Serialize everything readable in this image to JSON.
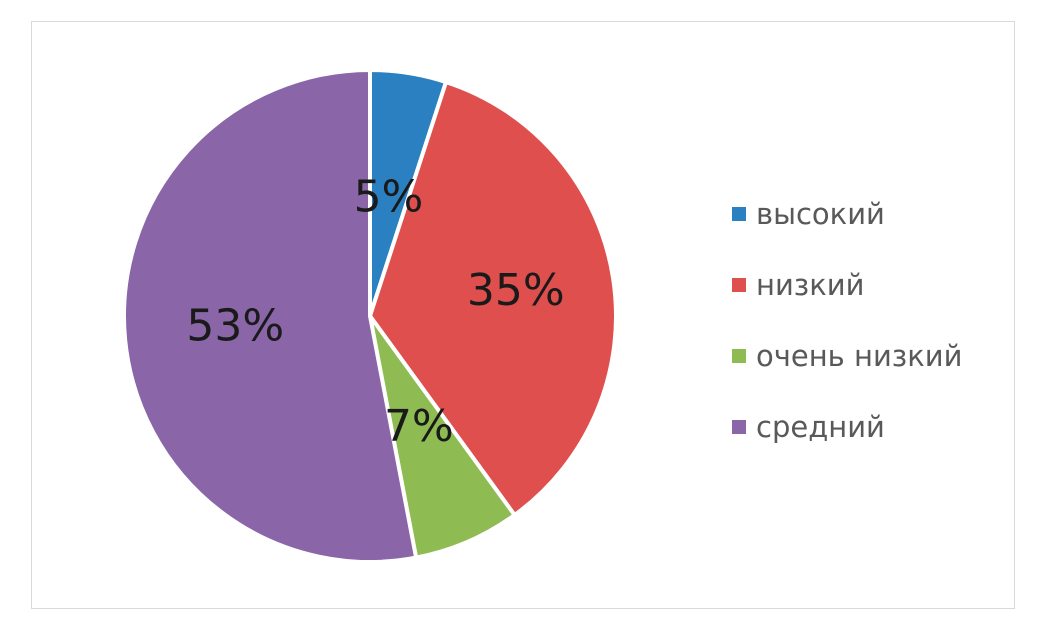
{
  "chart_data": {
    "type": "pie",
    "categories": [
      "высокий",
      "низкий",
      "очень низкий",
      "средний"
    ],
    "values": [
      5,
      35,
      7,
      53
    ],
    "labels": [
      "5%",
      "35%",
      "7%",
      "53%"
    ],
    "colors": [
      "#2a80c0",
      "#df4f4d",
      "#8fbc52",
      "#8a66a8"
    ],
    "legend_position": "right"
  }
}
